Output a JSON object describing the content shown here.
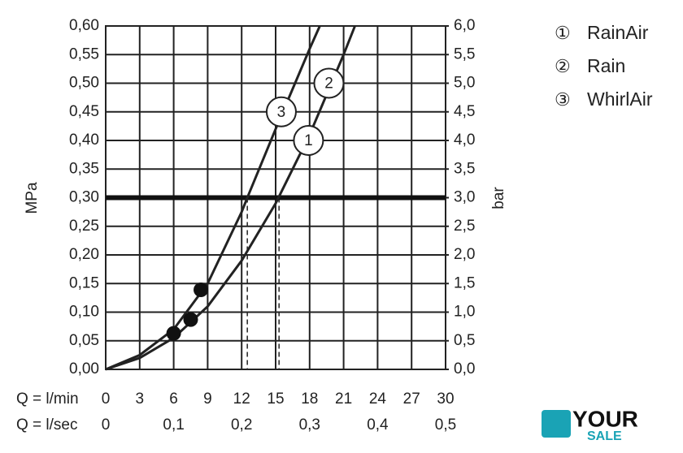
{
  "chart_data": {
    "type": "line",
    "xlabel": "Q = l/min",
    "x2label": "Q = l/sec",
    "ylabel": "MPa",
    "y2label": "bar",
    "xlim": [
      0,
      30
    ],
    "xticks": [
      0,
      3,
      6,
      9,
      12,
      15,
      18,
      21,
      24,
      27,
      30
    ],
    "x2lim": [
      0,
      0.5
    ],
    "x2ticks": [
      {
        "value": 0,
        "label": "0"
      },
      {
        "value": 0.1,
        "label": "0,1"
      },
      {
        "value": 0.2,
        "label": "0,2"
      },
      {
        "value": 0.3,
        "label": "0,3"
      },
      {
        "value": 0.4,
        "label": "0,4"
      },
      {
        "value": 0.5,
        "label": "0,5"
      }
    ],
    "ylim": [
      0,
      0.6
    ],
    "yticks": [
      {
        "value": 0,
        "label": "0,00"
      },
      {
        "value": 0.05,
        "label": "0,05"
      },
      {
        "value": 0.1,
        "label": "0,10"
      },
      {
        "value": 0.15,
        "label": "0,15"
      },
      {
        "value": 0.2,
        "label": "0,20"
      },
      {
        "value": 0.25,
        "label": "0,25"
      },
      {
        "value": 0.3,
        "label": "0,30"
      },
      {
        "value": 0.35,
        "label": "0,35"
      },
      {
        "value": 0.4,
        "label": "0,40"
      },
      {
        "value": 0.45,
        "label": "0,45"
      },
      {
        "value": 0.5,
        "label": "0,50"
      },
      {
        "value": 0.55,
        "label": "0,55"
      },
      {
        "value": 0.6,
        "label": "0,60"
      }
    ],
    "y2lim": [
      0,
      6
    ],
    "y2ticks": [
      {
        "value": 0,
        "label": "0,0"
      },
      {
        "value": 0.5,
        "label": "0,5"
      },
      {
        "value": 1,
        "label": "1,0"
      },
      {
        "value": 1.5,
        "label": "1,5"
      },
      {
        "value": 2,
        "label": "2,0"
      },
      {
        "value": 2.5,
        "label": "2,5"
      },
      {
        "value": 3,
        "label": "3,0"
      },
      {
        "value": 3.5,
        "label": "3,5"
      },
      {
        "value": 4,
        "label": "4,0"
      },
      {
        "value": 4.5,
        "label": "4,5"
      },
      {
        "value": 5,
        "label": "5,0"
      },
      {
        "value": 5.5,
        "label": "5,5"
      },
      {
        "value": 6,
        "label": "6,0"
      }
    ],
    "grid": true,
    "color": "#222222",
    "series": [
      {
        "x": [
          0,
          3,
          6,
          9,
          12,
          15,
          18,
          21,
          22
        ],
        "values": [
          0,
          0.02,
          0.055,
          0.11,
          0.19,
          0.29,
          0.41,
          0.55,
          0.6
        ]
      },
      {
        "x": [
          0,
          3,
          6,
          9,
          12,
          12.5,
          15,
          18,
          18.9
        ],
        "values": [
          0,
          0.025,
          0.07,
          0.15,
          0.275,
          0.3,
          0.42,
          0.56,
          0.6
        ]
      }
    ],
    "points": {
      "x": [
        6,
        7.5,
        8.4
      ],
      "values": [
        0.063,
        0.087,
        0.139
      ]
    },
    "hline": 0.3,
    "vlines": [
      12.5,
      15.3
    ],
    "curve_labels": [
      {
        "text": "1",
        "x": 17.9,
        "y": 0.4
      },
      {
        "text": "2",
        "x": 19.7,
        "y": 0.5
      },
      {
        "text": "3",
        "x": 15.5,
        "y": 0.45
      }
    ],
    "legend": [
      {
        "symbol": "①",
        "name": "RainAir"
      },
      {
        "symbol": "②",
        "name": "Rain"
      },
      {
        "symbol": "③",
        "name": "WhirlAir"
      }
    ],
    "logo": [
      "YOUR",
      "SALE"
    ]
  }
}
